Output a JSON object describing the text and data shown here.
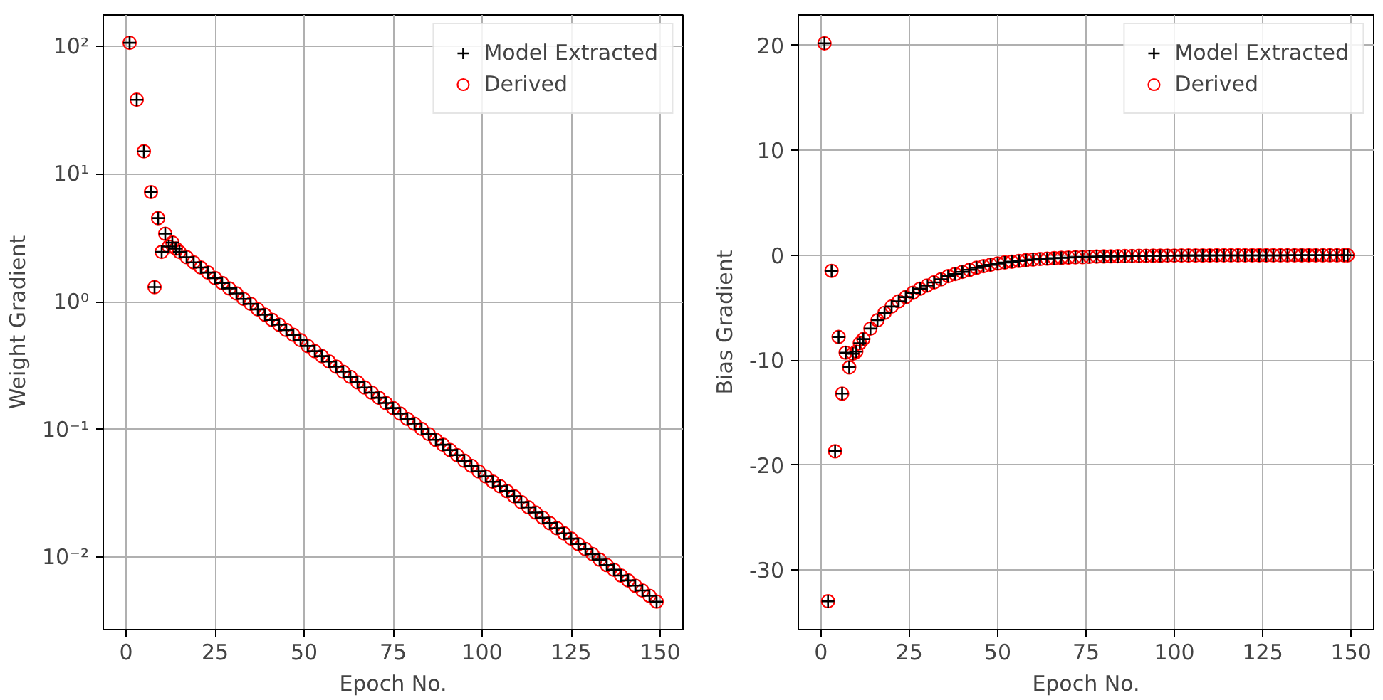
{
  "chart_data": [
    {
      "type": "scatter",
      "xlabel": "Epoch No.",
      "ylabel": "Weight Gradient",
      "log": "y",
      "grid": true,
      "legend": "top right",
      "xlim": [
        -6.4,
        156.4
      ],
      "xticks": [
        0,
        25,
        50,
        75,
        100,
        125,
        150
      ],
      "ylim": [
        0.00272,
        175
      ],
      "yticks": [
        {
          "value": 100,
          "label": "10²"
        },
        {
          "value": 10,
          "label": "10¹"
        },
        {
          "value": 1,
          "label": "10⁰"
        },
        {
          "value": 0.1,
          "label": "10⁻¹"
        },
        {
          "value": 0.01,
          "label": "10⁻²"
        }
      ],
      "series": [
        {
          "name": "Model Extracted",
          "color": "#000000",
          "marker": "cross",
          "x": [
            1,
            3,
            5,
            7,
            8,
            9,
            10,
            11,
            12,
            13,
            14,
            15,
            17,
            19,
            21,
            23,
            25,
            27,
            29,
            31,
            33,
            35,
            37,
            39,
            41,
            43,
            45,
            47,
            49,
            51,
            53,
            55,
            57,
            59,
            61,
            63,
            65,
            67,
            69,
            71,
            73,
            75,
            77,
            79,
            81,
            83,
            85,
            87,
            89,
            91,
            93,
            95,
            97,
            99,
            101,
            103,
            105,
            107,
            109,
            111,
            113,
            115,
            117,
            119,
            121,
            123,
            125,
            127,
            129,
            131,
            133,
            135,
            137,
            139,
            141,
            143,
            145,
            147,
            149
          ],
          "values": [
            106,
            38,
            15,
            7.2,
            1.3,
            4.5,
            2.45,
            3.4,
            2.7,
            2.9,
            2.6,
            2.45,
            2.23,
            2.03,
            1.85,
            1.69,
            1.53,
            1.4,
            1.27,
            1.16,
            1.05,
            0.96,
            0.87,
            0.79,
            0.72,
            0.66,
            0.6,
            0.55,
            0.5,
            0.45,
            0.41,
            0.375,
            0.34,
            0.31,
            0.283,
            0.258,
            0.234,
            0.213,
            0.194,
            0.177,
            0.161,
            0.147,
            0.133,
            0.121,
            0.111,
            0.101,
            0.092,
            0.083,
            0.076,
            0.069,
            0.063,
            0.057,
            0.052,
            0.047,
            0.043,
            0.039,
            0.036,
            0.033,
            0.03,
            0.027,
            0.0246,
            0.0224,
            0.0204,
            0.0185,
            0.0169,
            0.0154,
            0.014,
            0.0127,
            0.0116,
            0.0106,
            0.0096,
            0.0087,
            0.008,
            0.0072,
            0.0066,
            0.006,
            0.0055,
            0.005,
            0.0045
          ]
        },
        {
          "name": "Derived",
          "color": "#ff0000",
          "marker": "circle",
          "x": [
            1,
            3,
            5,
            7,
            8,
            9,
            10,
            11,
            12,
            13,
            14,
            15,
            17,
            19,
            21,
            23,
            25,
            27,
            29,
            31,
            33,
            35,
            37,
            39,
            41,
            43,
            45,
            47,
            49,
            51,
            53,
            55,
            57,
            59,
            61,
            63,
            65,
            67,
            69,
            71,
            73,
            75,
            77,
            79,
            81,
            83,
            85,
            87,
            89,
            91,
            93,
            95,
            97,
            99,
            101,
            103,
            105,
            107,
            109,
            111,
            113,
            115,
            117,
            119,
            121,
            123,
            125,
            127,
            129,
            131,
            133,
            135,
            137,
            139,
            141,
            143,
            145,
            147,
            149
          ],
          "values": [
            106,
            38,
            15,
            7.2,
            1.3,
            4.5,
            2.45,
            3.4,
            2.7,
            2.9,
            2.6,
            2.45,
            2.23,
            2.03,
            1.85,
            1.69,
            1.53,
            1.4,
            1.27,
            1.16,
            1.05,
            0.96,
            0.87,
            0.79,
            0.72,
            0.66,
            0.6,
            0.55,
            0.5,
            0.45,
            0.41,
            0.375,
            0.34,
            0.31,
            0.283,
            0.258,
            0.234,
            0.213,
            0.194,
            0.177,
            0.161,
            0.147,
            0.133,
            0.121,
            0.111,
            0.101,
            0.092,
            0.083,
            0.076,
            0.069,
            0.063,
            0.057,
            0.052,
            0.047,
            0.043,
            0.039,
            0.036,
            0.033,
            0.03,
            0.027,
            0.0246,
            0.0224,
            0.0204,
            0.0185,
            0.0169,
            0.0154,
            0.014,
            0.0127,
            0.0116,
            0.0106,
            0.0096,
            0.0087,
            0.008,
            0.0072,
            0.0066,
            0.006,
            0.0055,
            0.005,
            0.0045
          ]
        }
      ]
    },
    {
      "type": "scatter",
      "xlabel": "Epoch No.",
      "ylabel": "Bias Gradient",
      "grid": true,
      "legend": "top right",
      "xlim": [
        -6.4,
        156.4
      ],
      "xticks": [
        0,
        25,
        50,
        75,
        100,
        125,
        150
      ],
      "ylim": [
        -35.7,
        22.9
      ],
      "yticks": [
        -30,
        -20,
        -10,
        0,
        10,
        20
      ],
      "series": [
        {
          "name": "Model Extracted",
          "color": "#000000",
          "marker": "cross",
          "x": [
            1,
            2,
            3,
            4,
            5,
            6,
            7,
            8,
            9,
            10,
            11,
            12,
            14,
            16,
            18,
            20,
            22,
            24,
            26,
            28,
            30,
            32,
            34,
            36,
            38,
            40,
            42,
            44,
            46,
            48,
            50,
            52,
            54,
            56,
            58,
            60,
            62,
            64,
            66,
            68,
            70,
            72,
            74,
            76,
            78,
            80,
            82,
            84,
            86,
            88,
            90,
            92,
            94,
            96,
            98,
            100,
            102,
            104,
            106,
            108,
            110,
            112,
            114,
            116,
            118,
            120,
            122,
            124,
            126,
            128,
            130,
            132,
            134,
            136,
            138,
            140,
            142,
            144,
            146,
            148,
            149
          ],
          "values": [
            20.2,
            -33.0,
            -1.5,
            -18.7,
            -7.8,
            -13.2,
            -9.3,
            -10.7,
            -9.4,
            -9.2,
            -8.4,
            -8.0,
            -7.0,
            -6.2,
            -5.5,
            -4.9,
            -4.4,
            -4.0,
            -3.6,
            -3.2,
            -2.9,
            -2.6,
            -2.3,
            -2.0,
            -1.8,
            -1.6,
            -1.4,
            -1.2,
            -1.05,
            -0.92,
            -0.8,
            -0.7,
            -0.62,
            -0.55,
            -0.48,
            -0.42,
            -0.37,
            -0.33,
            -0.29,
            -0.26,
            -0.23,
            -0.2,
            -0.18,
            -0.16,
            -0.14,
            -0.12,
            -0.11,
            -0.1,
            -0.09,
            -0.08,
            -0.07,
            -0.06,
            -0.05,
            -0.05,
            -0.04,
            -0.04,
            -0.03,
            -0.03,
            -0.03,
            -0.03,
            -0.03,
            -0.02,
            -0.02,
            -0.02,
            -0.02,
            -0.02,
            -0.02,
            -0.02,
            -0.02,
            -0.02,
            -0.02,
            -0.01,
            -0.01,
            -0.01,
            -0.01,
            -0.01,
            -0.01,
            -0.01,
            -0.01,
            -0.01,
            -0.01
          ]
        },
        {
          "name": "Derived",
          "color": "#ff0000",
          "marker": "circle",
          "x": [
            1,
            2,
            3,
            4,
            5,
            6,
            7,
            8,
            9,
            10,
            11,
            12,
            14,
            16,
            18,
            20,
            22,
            24,
            26,
            28,
            30,
            32,
            34,
            36,
            38,
            40,
            42,
            44,
            46,
            48,
            50,
            52,
            54,
            56,
            58,
            60,
            62,
            64,
            66,
            68,
            70,
            72,
            74,
            76,
            78,
            80,
            82,
            84,
            86,
            88,
            90,
            92,
            94,
            96,
            98,
            100,
            102,
            104,
            106,
            108,
            110,
            112,
            114,
            116,
            118,
            120,
            122,
            124,
            126,
            128,
            130,
            132,
            134,
            136,
            138,
            140,
            142,
            144,
            146,
            148,
            149
          ],
          "values": [
            20.2,
            -33.0,
            -1.5,
            -18.7,
            -7.8,
            -13.2,
            -9.3,
            -10.7,
            -9.4,
            -9.2,
            -8.4,
            -8.0,
            -7.0,
            -6.2,
            -5.5,
            -4.9,
            -4.4,
            -4.0,
            -3.6,
            -3.2,
            -2.9,
            -2.6,
            -2.3,
            -2.0,
            -1.8,
            -1.6,
            -1.4,
            -1.2,
            -1.05,
            -0.92,
            -0.8,
            -0.7,
            -0.62,
            -0.55,
            -0.48,
            -0.42,
            -0.37,
            -0.33,
            -0.29,
            -0.26,
            -0.23,
            -0.2,
            -0.18,
            -0.16,
            -0.14,
            -0.12,
            -0.11,
            -0.1,
            -0.09,
            -0.08,
            -0.07,
            -0.06,
            -0.05,
            -0.05,
            -0.04,
            -0.04,
            -0.03,
            -0.03,
            -0.03,
            -0.03,
            -0.03,
            -0.02,
            -0.02,
            -0.02,
            -0.02,
            -0.02,
            -0.02,
            -0.02,
            -0.02,
            -0.02,
            -0.02,
            -0.01,
            -0.01,
            -0.01,
            -0.01,
            -0.01,
            -0.01,
            -0.01,
            -0.01,
            -0.01,
            -0.01
          ]
        }
      ]
    }
  ]
}
